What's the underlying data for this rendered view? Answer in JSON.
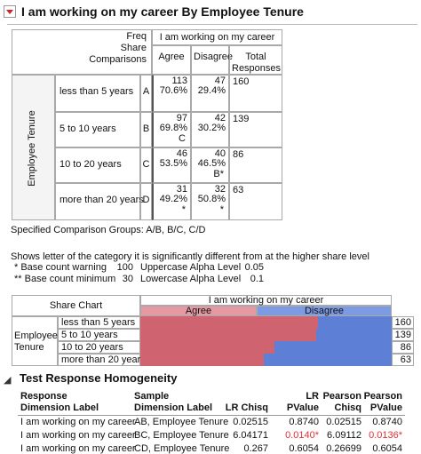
{
  "header": {
    "title": "I am working on my career By Employee Tenure"
  },
  "crosstab": {
    "stat_labels": [
      "Freq",
      "Share",
      "Comparisons"
    ],
    "column_group": "I am working on my career",
    "columns": [
      "Agree",
      "Disagree",
      "Total Responses"
    ],
    "row_group": "Employee Tenure",
    "rows": [
      {
        "label": "less than 5 years",
        "letter": "A",
        "agree": {
          "freq": 113,
          "share": {
            "value": 70.6,
            "label": "70.6%"
          }
        },
        "disagree": {
          "freq": 47,
          "share": {
            "value": 29.4,
            "label": "29.4%"
          }
        },
        "total": 160
      },
      {
        "label": "5 to 10 years",
        "letter": "B",
        "agree": {
          "freq": 97,
          "share": {
            "value": 69.8,
            "label": "69.8%"
          },
          "comparison": "C"
        },
        "disagree": {
          "freq": 42,
          "share": {
            "value": 30.2,
            "label": "30.2%"
          }
        },
        "total": 139
      },
      {
        "label": "10 to 20 years",
        "letter": "C",
        "agree": {
          "freq": 46,
          "share": {
            "value": 53.5,
            "label": "53.5%"
          }
        },
        "disagree": {
          "freq": 40,
          "share": {
            "value": 46.5,
            "label": "46.5%"
          },
          "comparison": "B*"
        },
        "total": 86
      },
      {
        "label": "more than 20 years",
        "letter": "D",
        "agree": {
          "freq": 31,
          "share": {
            "value": 49.2,
            "label": "49.2%"
          },
          "comparison": "*"
        },
        "disagree": {
          "freq": 32,
          "share": {
            "value": 50.8,
            "label": "50.8%"
          },
          "comparison": "*"
        },
        "total": 63
      }
    ]
  },
  "notes": {
    "groups": "Specified Comparison Groups: A/B, B/C, C/D",
    "explanation": "Shows letter of the category it is significantly different from at the higher share level",
    "legend": [
      [
        "* Base count warning",
        "100",
        "Uppercase Alpha Level",
        "0.05"
      ],
      [
        "** Base count minimum",
        "30",
        "Lowercase Alpha Level",
        "0.1"
      ]
    ]
  },
  "share_chart": {
    "title": "Share Chart",
    "colors": [
      "#cf6470",
      "#5d7fd6"
    ],
    "header_colors": [
      "#e59aa3",
      "#7d9be2"
    ]
  },
  "test": {
    "title": "Test Response Homogeneity",
    "columns": [
      "Response\nDimension Label",
      "Sample\nDimension Label",
      "LR Chisq",
      "LR PValue",
      "Pearson\nChisq",
      "Pearson\nPValue"
    ],
    "rows": [
      [
        "I am working on my career",
        "AB, Employee Tenure",
        "0.02515",
        "0.8740",
        "0.02515",
        "0.8740"
      ],
      [
        "I am working on my career",
        "BC, Employee Tenure",
        "6.04171",
        "0.0140*",
        "6.09112",
        "0.0136*"
      ],
      [
        "I am working on my career",
        "CD, Employee Tenure",
        "0.267",
        "0.6054",
        "0.26699",
        "0.6054"
      ]
    ]
  }
}
